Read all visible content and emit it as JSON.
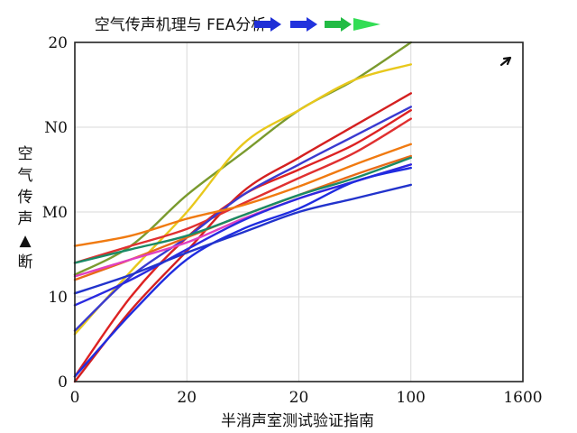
{
  "chart_data": {
    "type": "line",
    "title": "空气传声机理与 FEA分析",
    "legend_placement": "top",
    "legend_markers": [
      {
        "color": "#1f2fd6",
        "shape": "arrow"
      },
      {
        "color": "#2233dd",
        "shape": "arrow"
      },
      {
        "color": "#22bb44",
        "shape": "arrow"
      },
      {
        "color": "#33dd55",
        "shape": "triangle"
      }
    ],
    "xlabel": "半消声室测试验证指南",
    "ylabel_chars": [
      "空",
      "气",
      "传",
      "声",
      "▲",
      "断"
    ],
    "x_tick_labels": [
      "0",
      "20",
      "20",
      "100",
      "1600"
    ],
    "y_tick_labels": [
      "0",
      "10",
      "M0",
      "N0",
      "20"
    ],
    "xlim": [
      0,
      160
    ],
    "ylim": [
      0,
      200
    ],
    "grid": true,
    "annotation": "arrow near upper right",
    "series": [
      {
        "color": "#7a9a2e",
        "values": [
          [
            0,
            63
          ],
          [
            20,
            80
          ],
          [
            40,
            110
          ],
          [
            60,
            135
          ],
          [
            80,
            160
          ],
          [
            100,
            178
          ],
          [
            120,
            200
          ]
        ]
      },
      {
        "color": "#e8c81c",
        "values": [
          [
            0,
            28
          ],
          [
            20,
            65
          ],
          [
            40,
            100
          ],
          [
            60,
            140
          ],
          [
            80,
            160
          ],
          [
            100,
            178
          ],
          [
            120,
            187
          ]
        ]
      },
      {
        "color": "#d42020",
        "values": [
          [
            0,
            0
          ],
          [
            20,
            42
          ],
          [
            40,
            77
          ],
          [
            60,
            112
          ],
          [
            80,
            132
          ],
          [
            100,
            151
          ],
          [
            120,
            170
          ]
        ]
      },
      {
        "color": "#dd2222",
        "values": [
          [
            0,
            3
          ],
          [
            20,
            50
          ],
          [
            40,
            85
          ],
          [
            60,
            110
          ],
          [
            80,
            125
          ],
          [
            100,
            140
          ],
          [
            120,
            160
          ]
        ]
      },
      {
        "color": "#e03030",
        "values": [
          [
            0,
            70
          ],
          [
            20,
            80
          ],
          [
            40,
            90
          ],
          [
            60,
            105
          ],
          [
            80,
            120
          ],
          [
            100,
            135
          ],
          [
            120,
            155
          ]
        ]
      },
      {
        "color": "#3a3ad0",
        "values": [
          [
            0,
            30
          ],
          [
            20,
            62
          ],
          [
            40,
            85
          ],
          [
            60,
            110
          ],
          [
            80,
            128
          ],
          [
            100,
            145
          ],
          [
            120,
            162
          ]
        ]
      },
      {
        "color": "#f07a10",
        "values": [
          [
            0,
            80
          ],
          [
            20,
            86
          ],
          [
            40,
            96
          ],
          [
            60,
            104
          ],
          [
            80,
            115
          ],
          [
            100,
            128
          ],
          [
            120,
            140
          ]
        ]
      },
      {
        "color": "#e86a18",
        "values": [
          [
            0,
            60
          ],
          [
            20,
            72
          ],
          [
            40,
            85
          ],
          [
            60,
            98
          ],
          [
            80,
            110
          ],
          [
            100,
            122
          ],
          [
            120,
            133
          ]
        ]
      },
      {
        "color": "#1a8a66",
        "values": [
          [
            0,
            70
          ],
          [
            20,
            78
          ],
          [
            40,
            86
          ],
          [
            60,
            98
          ],
          [
            80,
            110
          ],
          [
            100,
            120
          ],
          [
            120,
            132
          ]
        ]
      },
      {
        "color": "#e040c0",
        "values": [
          [
            0,
            62
          ],
          [
            20,
            72
          ],
          [
            40,
            82
          ],
          [
            60,
            96
          ],
          [
            80,
            108
          ],
          [
            100,
            118
          ],
          [
            120,
            128
          ]
        ]
      },
      {
        "color": "#2a2ae0",
        "values": [
          [
            0,
            45
          ],
          [
            20,
            60
          ],
          [
            40,
            78
          ],
          [
            60,
            95
          ],
          [
            80,
            108
          ],
          [
            100,
            118
          ],
          [
            120,
            128
          ]
        ]
      },
      {
        "color": "#1f2ce0",
        "values": [
          [
            0,
            3
          ],
          [
            20,
            40
          ],
          [
            40,
            72
          ],
          [
            60,
            90
          ],
          [
            80,
            102
          ],
          [
            100,
            118
          ],
          [
            120,
            126
          ]
        ]
      },
      {
        "color": "#2233cc",
        "values": [
          [
            0,
            52
          ],
          [
            20,
            63
          ],
          [
            40,
            76
          ],
          [
            60,
            88
          ],
          [
            80,
            100
          ],
          [
            100,
            108
          ],
          [
            120,
            116
          ]
        ]
      }
    ]
  }
}
